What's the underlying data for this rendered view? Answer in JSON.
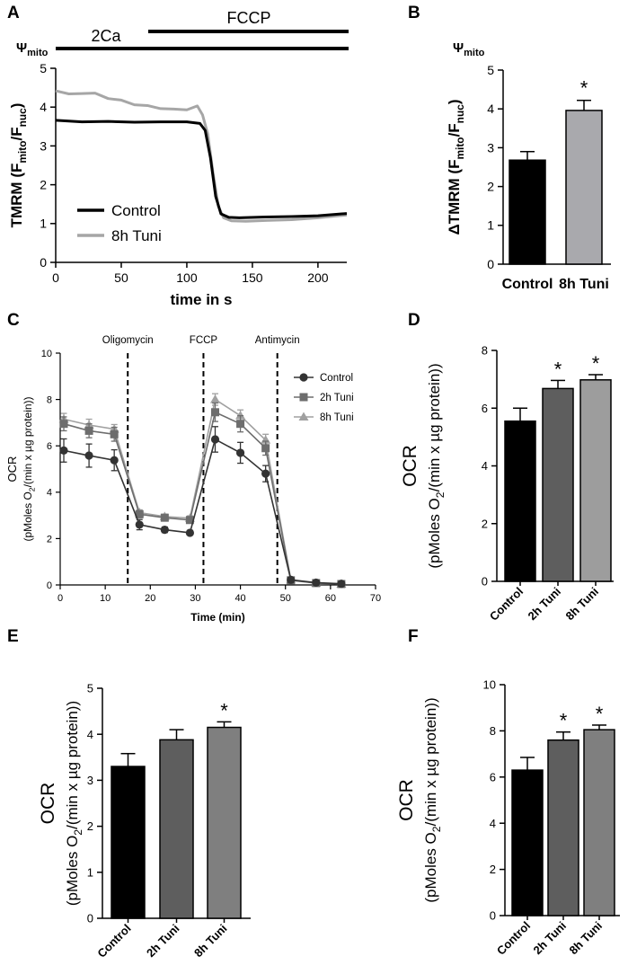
{
  "colors": {
    "black": "#000000",
    "dark_gray": "#5e5e5e",
    "mid_gray": "#7f7f7f",
    "light_gray": "#9d9d9d",
    "trace_gray": "#a6a6a6",
    "bar_light": "#a9a9ad"
  },
  "chart_data": [
    {
      "panel": "A",
      "type": "line",
      "ylabel_main": "TMRM (F",
      "ylabel_sub1": "mito",
      "ylabel_mid": "/F",
      "ylabel_sub2": "nuc",
      "ylabel_end": ")",
      "xlabel": "time in s",
      "xlim": [
        0,
        222
      ],
      "ylim": [
        0,
        5
      ],
      "xticks": [
        0,
        50,
        100,
        150,
        200
      ],
      "yticks": [
        0,
        1,
        2,
        3,
        4,
        5
      ],
      "bars_above": [
        {
          "label": "2Ca"
        },
        {
          "label": "FCCP"
        },
        {
          "label": "Ψ",
          "sub": "mito"
        }
      ],
      "series": [
        {
          "name": "Control",
          "color": "#000000",
          "x": [
            0,
            20,
            40,
            60,
            80,
            100,
            110,
            114,
            118,
            122,
            126,
            132,
            140,
            160,
            180,
            200,
            222
          ],
          "y": [
            3.66,
            3.62,
            3.63,
            3.61,
            3.62,
            3.62,
            3.58,
            3.4,
            2.7,
            1.7,
            1.25,
            1.16,
            1.15,
            1.17,
            1.18,
            1.2,
            1.26
          ]
        },
        {
          "name": "8h Tuni",
          "color": "#a6a6a6",
          "x": [
            0,
            10,
            20,
            30,
            40,
            50,
            60,
            70,
            80,
            90,
            100,
            108,
            112,
            116,
            120,
            124,
            128,
            134,
            145,
            160,
            180,
            200,
            222
          ],
          "y": [
            4.42,
            4.34,
            4.35,
            4.36,
            4.22,
            4.18,
            4.06,
            4.04,
            3.96,
            3.95,
            3.93,
            4.03,
            3.8,
            3.3,
            2.3,
            1.45,
            1.15,
            1.07,
            1.06,
            1.08,
            1.1,
            1.15,
            1.22
          ]
        }
      ]
    },
    {
      "panel": "B",
      "type": "bar",
      "header": "Ψ",
      "header_sub": "mito",
      "ylabel_main": "ΔTMRM (F",
      "ylabel_sub1": "mito",
      "ylabel_mid": "/F",
      "ylabel_sub2": "nuc",
      "ylabel_end": ")",
      "ylim": [
        0,
        5
      ],
      "yticks": [
        0,
        1,
        2,
        3,
        4,
        5
      ],
      "categories": [
        "Control",
        "8h Tuni"
      ],
      "values": [
        2.68,
        3.96
      ],
      "errors": [
        0.22,
        0.26
      ],
      "significance": [
        "",
        "*"
      ],
      "bar_colors": [
        "#000000",
        "#a9a9ad"
      ]
    },
    {
      "panel": "C",
      "type": "line",
      "ylabel_line1": "OCR",
      "ylabel_line2": "(pMoles O",
      "ylabel_line2_sub": "2",
      "ylabel_line2_end": "/(min x µg protein))",
      "xlabel": "Time (min)",
      "xlim": [
        0,
        70
      ],
      "ylim": [
        0,
        10
      ],
      "xticks": [
        0,
        10,
        20,
        30,
        40,
        50,
        60,
        70
      ],
      "yticks": [
        0,
        2,
        4,
        6,
        8,
        10
      ],
      "injections": [
        {
          "label": "Oligomycin",
          "x": 15
        },
        {
          "label": "FCCP",
          "x": 31.8
        },
        {
          "label": "Antimycin",
          "x": 48.2
        }
      ],
      "x": [
        0.8,
        6.4,
        12,
        17.6,
        23.2,
        28.8,
        34.4,
        40,
        45.6,
        51.2,
        56.8,
        62.4
      ],
      "series": [
        {
          "name": "Control",
          "marker": "circle",
          "color": "#333333",
          "values": [
            5.8,
            5.58,
            5.38,
            2.6,
            2.38,
            2.25,
            6.28,
            5.7,
            4.8,
            0.22,
            0.1,
            0.05
          ],
          "errors": [
            0.5,
            0.5,
            0.45,
            0.22,
            0.12,
            0.1,
            0.55,
            0.45,
            0.35,
            0.1,
            0.05,
            0.03
          ]
        },
        {
          "name": "2h Tuni",
          "marker": "square",
          "color": "#6d6d6d",
          "values": [
            6.95,
            6.65,
            6.5,
            3.05,
            2.9,
            2.8,
            7.45,
            6.95,
            5.9,
            0.2,
            0.08,
            0.04
          ],
          "errors": [
            0.3,
            0.3,
            0.3,
            0.15,
            0.12,
            0.1,
            0.4,
            0.35,
            0.3,
            0.08,
            0.04,
            0.02
          ]
        },
        {
          "name": "8h Tuni",
          "marker": "triangle",
          "color": "#a0a0a0",
          "values": [
            7.15,
            6.9,
            6.72,
            3.12,
            2.95,
            2.88,
            8.0,
            7.3,
            6.25,
            0.22,
            0.08,
            0.04
          ],
          "errors": [
            0.25,
            0.25,
            0.2,
            0.12,
            0.1,
            0.1,
            0.25,
            0.25,
            0.25,
            0.05,
            0.03,
            0.02
          ]
        }
      ]
    },
    {
      "panel": "D",
      "type": "bar",
      "ylabel_line1": "OCR",
      "ylabel_line2": "(pMoles O",
      "ylabel_line2_sub": "2",
      "ylabel_line2_end": "/(min x µg protein))",
      "ylim": [
        0,
        8
      ],
      "yticks": [
        0,
        2,
        4,
        6,
        8
      ],
      "categories": [
        "Control",
        "2h Tuni",
        "8h Tuni"
      ],
      "values": [
        5.55,
        6.68,
        6.98
      ],
      "errors": [
        0.45,
        0.28,
        0.18
      ],
      "significance": [
        "",
        "*",
        "*"
      ],
      "bar_colors": [
        "#000000",
        "#5e5e5e",
        "#9d9d9d"
      ]
    },
    {
      "panel": "E",
      "type": "bar",
      "ylabel_line1": "OCR",
      "ylabel_line2": "(pMoles O",
      "ylabel_line2_sub": "2",
      "ylabel_line2_end": "/(min x µg protein))",
      "ylim": [
        0,
        5
      ],
      "yticks": [
        0,
        1,
        2,
        3,
        4,
        5
      ],
      "categories": [
        "Control",
        "2h Tuni",
        "8h Tuni"
      ],
      "values": [
        3.3,
        3.88,
        4.15
      ],
      "errors": [
        0.28,
        0.22,
        0.12
      ],
      "significance": [
        "",
        "",
        "*"
      ],
      "bar_colors": [
        "#000000",
        "#5e5e5e",
        "#7f7f7f"
      ]
    },
    {
      "panel": "F",
      "type": "bar",
      "ylabel_line1": "OCR",
      "ylabel_line2": "(pMoles O",
      "ylabel_line2_sub": "2",
      "ylabel_line2_end": "/(min x µg protein))",
      "ylim": [
        0,
        10
      ],
      "yticks": [
        0,
        2,
        4,
        6,
        8,
        10
      ],
      "categories": [
        "Control",
        "2h Tuni",
        "8h Tuni"
      ],
      "values": [
        6.3,
        7.6,
        8.05
      ],
      "errors": [
        0.55,
        0.35,
        0.2
      ],
      "significance": [
        "",
        "*",
        "*"
      ],
      "bar_colors": [
        "#000000",
        "#5e5e5e",
        "#7f7f7f"
      ]
    }
  ]
}
